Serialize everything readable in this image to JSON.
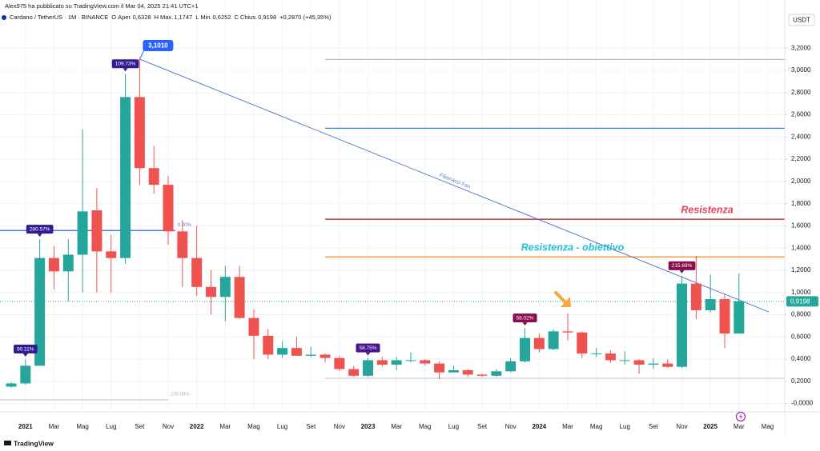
{
  "header": {
    "publisher": "Alex975 ha pubblicato su TradingView.com il Mar 04, 2025 21:41 UTC+1",
    "symbol": "Cardano / TetherUS · 1M · BINANCE",
    "ohlc": [
      {
        "key": "O",
        "label": "Aper.",
        "value": "0,6328"
      },
      {
        "key": "H",
        "label": "Max.",
        "value": "1,1747"
      },
      {
        "key": "L",
        "label": "Min.",
        "value": "0,6252"
      },
      {
        "key": "C",
        "label": "Chius.",
        "value": "0,9198"
      }
    ],
    "change": "+0,2870 (+45,35%)"
  },
  "footer": {
    "logo": "TradingView"
  },
  "chart_data": {
    "type": "candlestick",
    "currency": "USDT",
    "categories": [
      null,
      "2021",
      null,
      "Mar",
      null,
      "Mag",
      null,
      "Lug",
      null,
      "Set",
      null,
      "Nov",
      null,
      "2022",
      null,
      "Mar",
      null,
      "Mag",
      null,
      "Lug",
      null,
      "Set",
      null,
      "Nov",
      null,
      "2023",
      null,
      "Mar",
      null,
      "Mag",
      null,
      "Lug",
      null,
      "Set",
      null,
      "Nov",
      null,
      "2024",
      null,
      "Mar",
      null,
      "Mag",
      null,
      "Lug",
      null,
      "Set",
      null,
      "Nov",
      null,
      "2025",
      null,
      "Mar"
    ],
    "future_categories": [
      null,
      "Mag"
    ],
    "open": [
      0.152,
      0.181,
      0.34,
      1.31,
      1.19,
      1.34,
      1.74,
      1.37,
      1.31,
      2.76,
      2.12,
      1.97,
      1.55,
      1.31,
      1.05,
      0.96,
      1.14,
      0.77,
      0.61,
      0.44,
      0.5,
      0.43,
      0.44,
      0.41,
      0.31,
      0.25,
      0.39,
      0.35,
      0.39,
      0.39,
      0.36,
      0.28,
      0.3,
      0.26,
      0.25,
      0.29,
      0.38,
      0.59,
      0.49,
      0.65,
      0.64,
      0.45,
      0.45,
      0.39,
      0.39,
      0.35,
      0.36,
      0.33,
      1.08,
      0.84,
      0.94,
      0.63
    ],
    "high": [
      0.19,
      0.4,
      1.48,
      1.42,
      1.48,
      2.47,
      1.94,
      1.52,
      2.97,
      3.101,
      2.32,
      2.05,
      1.65,
      1.6,
      1.2,
      1.24,
      1.24,
      0.85,
      0.67,
      0.56,
      0.6,
      0.51,
      0.45,
      0.43,
      0.34,
      0.41,
      0.42,
      0.42,
      0.46,
      0.4,
      0.38,
      0.34,
      0.31,
      0.27,
      0.31,
      0.41,
      0.68,
      0.63,
      0.67,
      0.81,
      0.65,
      0.5,
      0.48,
      0.47,
      0.4,
      0.41,
      0.4,
      1.15,
      1.33,
      1.16,
      0.99,
      1.17
    ],
    "low": [
      0.14,
      0.17,
      0.34,
      1.03,
      0.92,
      1.0,
      1.0,
      1.0,
      1.26,
      1.97,
      1.89,
      1.43,
      1.05,
      0.97,
      0.8,
      0.74,
      0.76,
      0.4,
      0.4,
      0.41,
      0.43,
      0.42,
      0.37,
      0.29,
      0.24,
      0.24,
      0.33,
      0.3,
      0.37,
      0.34,
      0.22,
      0.28,
      0.24,
      0.24,
      0.24,
      0.28,
      0.37,
      0.46,
      0.48,
      0.57,
      0.41,
      0.42,
      0.37,
      0.35,
      0.27,
      0.31,
      0.32,
      0.32,
      0.76,
      0.82,
      0.5,
      0.63
    ],
    "close": [
      0.181,
      0.34,
      1.31,
      1.19,
      1.34,
      1.73,
      1.37,
      1.31,
      2.76,
      2.12,
      1.97,
      1.55,
      1.31,
      1.05,
      0.96,
      1.14,
      0.77,
      0.61,
      0.44,
      0.5,
      0.43,
      0.44,
      0.41,
      0.31,
      0.25,
      0.39,
      0.35,
      0.39,
      0.39,
      0.36,
      0.28,
      0.3,
      0.26,
      0.25,
      0.29,
      0.38,
      0.59,
      0.49,
      0.65,
      0.64,
      0.45,
      0.45,
      0.39,
      0.39,
      0.35,
      0.36,
      0.33,
      1.08,
      0.84,
      0.94,
      0.63,
      0.92
    ],
    "up_color": "#26a69a",
    "down_color": "#ef5350",
    "ylim": [
      -0.075,
      3.49
    ],
    "yticks": [
      {
        "value": 3.2,
        "label": "3,2000"
      },
      {
        "value": 3.0,
        "label": "3,0000"
      },
      {
        "value": 2.8,
        "label": "2,8000"
      },
      {
        "value": 2.6,
        "label": "2,6000"
      },
      {
        "value": 2.4,
        "label": "2,4000"
      },
      {
        "value": 2.2,
        "label": "2,2000"
      },
      {
        "value": 2.0,
        "label": "2,0000"
      },
      {
        "value": 1.8,
        "label": "1,8000"
      },
      {
        "value": 1.6,
        "label": "1,6000"
      },
      {
        "value": 1.4,
        "label": "1,4000"
      },
      {
        "value": 1.2,
        "label": "1,2000"
      },
      {
        "value": 1.0,
        "label": "1,0000"
      },
      {
        "value": 0.8,
        "label": "0,8000"
      },
      {
        "value": 0.6,
        "label": "0,6000"
      },
      {
        "value": 0.4,
        "label": "0,4000"
      },
      {
        "value": 0.2,
        "label": "0,2000"
      },
      {
        "value": 0,
        "label": "-0,0000"
      }
    ],
    "grid": true,
    "last_price": {
      "value": 0.9198,
      "label": "0,9198",
      "color": "#26a69a"
    },
    "levels": [
      {
        "value": 3.098,
        "from": 22,
        "to": 54.2,
        "color": "#b2b5be"
      },
      {
        "value": 2.479,
        "from": 22,
        "to": 54.2,
        "color": "#1e88e5"
      },
      {
        "value": 1.659,
        "from": 22,
        "to": 54.2,
        "color": "#c0504d",
        "label": "Resistenza",
        "label_color": "#e5455a"
      },
      {
        "value": 1.32,
        "from": 22,
        "to": 54.2,
        "color": "#f0a04b",
        "label": "Resistenza - obiettivo",
        "label_color": "#22c1d6"
      },
      {
        "value": 0.227,
        "from": 22,
        "to": 54.2,
        "color": "#c8cad0"
      },
      {
        "value": 1.558,
        "from": -0.8,
        "to": 11.5,
        "color": "#2962ff",
        "label": "0.00%",
        "label_color": "#5b7bd6"
      },
      {
        "value": 0.033,
        "from": -0.8,
        "to": 11,
        "color": "#c8cad0",
        "label": "100.00%",
        "label_color": "#b2b5be"
      }
    ],
    "trend_line": {
      "label": "Fibonacci Fan",
      "color": "#5b7bd6",
      "x": [
        9,
        53.1
      ],
      "values": [
        3.101,
        0.824
      ]
    },
    "annotations": [
      {
        "index": 9,
        "text": "3,1010",
        "color": "#2962ff"
      },
      {
        "index": 8,
        "text": "109.73%",
        "color": "#311b92"
      },
      {
        "index": 2,
        "text": "280.57%",
        "color": "#311b92"
      },
      {
        "index": 1,
        "text": "90.11%",
        "color": "#311b92"
      },
      {
        "index": 25,
        "text": "58.75%",
        "color": "#4a148c"
      },
      {
        "index": 36,
        "text": "58.02%",
        "color": "#880e4f"
      },
      {
        "index": 47,
        "text": "215.68%",
        "color": "#880e4f"
      }
    ]
  }
}
